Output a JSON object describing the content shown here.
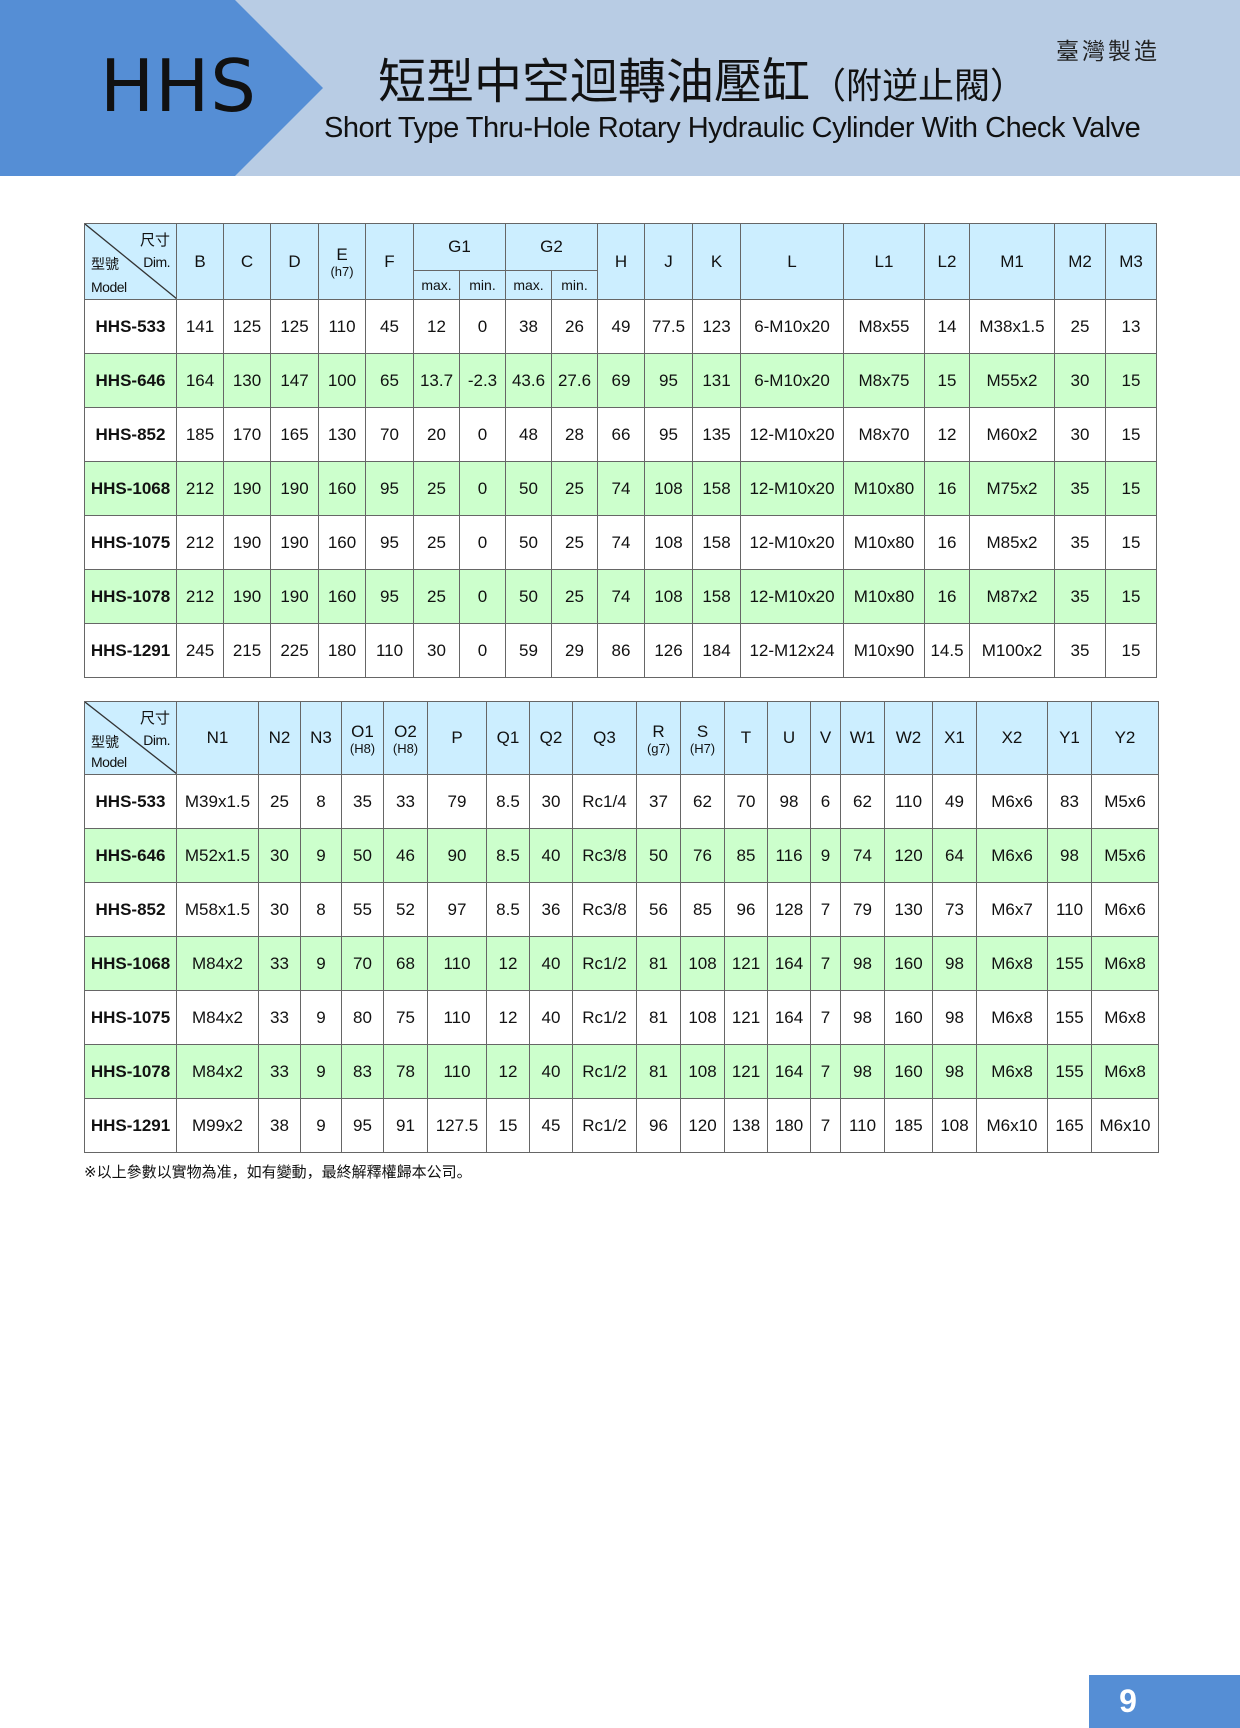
{
  "header": {
    "series": "HHS",
    "title_zh": "短型中空迴轉油壓缸",
    "title_zh_suffix": "（附逆止閥）",
    "title_en": "Short Type Thru-Hole Rotary Hydraulic Cylinder With Check Valve",
    "made_in": "臺灣製造"
  },
  "colors": {
    "banner_dark": "#558ed5",
    "banner_light": "#b8cce4",
    "header_cell": "#cceeff",
    "alt_row": "#ccffcc"
  },
  "corner": {
    "dim_zh": "尺寸",
    "model_zh": "型號",
    "dim_en": "Dim.",
    "model_en": "Model"
  },
  "table1": {
    "columns": [
      {
        "label": "B"
      },
      {
        "label": "C"
      },
      {
        "label": "D"
      },
      {
        "label": "E",
        "sub": "(h7)"
      },
      {
        "label": "F"
      },
      {
        "label": "G1",
        "children": [
          "max.",
          "min."
        ]
      },
      {
        "label": "G2",
        "children": [
          "max.",
          "min."
        ]
      },
      {
        "label": "H"
      },
      {
        "label": "J"
      },
      {
        "label": "K"
      },
      {
        "label": "L"
      },
      {
        "label": "L1"
      },
      {
        "label": "L2"
      },
      {
        "label": "M1"
      },
      {
        "label": "M2"
      },
      {
        "label": "M3"
      }
    ],
    "rows": [
      [
        "HHS-533",
        "141",
        "125",
        "125",
        "110",
        "45",
        "12",
        "0",
        "38",
        "26",
        "49",
        "77.5",
        "123",
        "6-M10x20",
        "M8x55",
        "14",
        "M38x1.5",
        "25",
        "13"
      ],
      [
        "HHS-646",
        "164",
        "130",
        "147",
        "100",
        "65",
        "13.7",
        "-2.3",
        "43.6",
        "27.6",
        "69",
        "95",
        "131",
        "6-M10x20",
        "M8x75",
        "15",
        "M55x2",
        "30",
        "15"
      ],
      [
        "HHS-852",
        "185",
        "170",
        "165",
        "130",
        "70",
        "20",
        "0",
        "48",
        "28",
        "66",
        "95",
        "135",
        "12-M10x20",
        "M8x70",
        "12",
        "M60x2",
        "30",
        "15"
      ],
      [
        "HHS-1068",
        "212",
        "190",
        "190",
        "160",
        "95",
        "25",
        "0",
        "50",
        "25",
        "74",
        "108",
        "158",
        "12-M10x20",
        "M10x80",
        "16",
        "M75x2",
        "35",
        "15"
      ],
      [
        "HHS-1075",
        "212",
        "190",
        "190",
        "160",
        "95",
        "25",
        "0",
        "50",
        "25",
        "74",
        "108",
        "158",
        "12-M10x20",
        "M10x80",
        "16",
        "M85x2",
        "35",
        "15"
      ],
      [
        "HHS-1078",
        "212",
        "190",
        "190",
        "160",
        "95",
        "25",
        "0",
        "50",
        "25",
        "74",
        "108",
        "158",
        "12-M10x20",
        "M10x80",
        "16",
        "M87x2",
        "35",
        "15"
      ],
      [
        "HHS-1291",
        "245",
        "215",
        "225",
        "180",
        "110",
        "30",
        "0",
        "59",
        "29",
        "86",
        "126",
        "184",
        "12-M12x24",
        "M10x90",
        "14.5",
        "M100x2",
        "35",
        "15"
      ]
    ]
  },
  "table2": {
    "columns": [
      {
        "label": "N1"
      },
      {
        "label": "N2"
      },
      {
        "label": "N3"
      },
      {
        "label": "O1",
        "sub": "(H8)"
      },
      {
        "label": "O2",
        "sub": "(H8)"
      },
      {
        "label": "P"
      },
      {
        "label": "Q1"
      },
      {
        "label": "Q2"
      },
      {
        "label": "Q3"
      },
      {
        "label": "R",
        "sub": "(g7)"
      },
      {
        "label": "S",
        "sub": "(H7)"
      },
      {
        "label": "T"
      },
      {
        "label": "U"
      },
      {
        "label": "V"
      },
      {
        "label": "W1"
      },
      {
        "label": "W2"
      },
      {
        "label": "X1"
      },
      {
        "label": "X2"
      },
      {
        "label": "Y1"
      },
      {
        "label": "Y2"
      }
    ],
    "rows": [
      [
        "HHS-533",
        "M39x1.5",
        "25",
        "8",
        "35",
        "33",
        "79",
        "8.5",
        "30",
        "Rc1/4",
        "37",
        "62",
        "70",
        "98",
        "6",
        "62",
        "110",
        "49",
        "M6x6",
        "83",
        "M5x6"
      ],
      [
        "HHS-646",
        "M52x1.5",
        "30",
        "9",
        "50",
        "46",
        "90",
        "8.5",
        "40",
        "Rc3/8",
        "50",
        "76",
        "85",
        "116",
        "9",
        "74",
        "120",
        "64",
        "M6x6",
        "98",
        "M5x6"
      ],
      [
        "HHS-852",
        "M58x1.5",
        "30",
        "8",
        "55",
        "52",
        "97",
        "8.5",
        "36",
        "Rc3/8",
        "56",
        "85",
        "96",
        "128",
        "7",
        "79",
        "130",
        "73",
        "M6x7",
        "110",
        "M6x6"
      ],
      [
        "HHS-1068",
        "M84x2",
        "33",
        "9",
        "70",
        "68",
        "110",
        "12",
        "40",
        "Rc1/2",
        "81",
        "108",
        "121",
        "164",
        "7",
        "98",
        "160",
        "98",
        "M6x8",
        "155",
        "M6x8"
      ],
      [
        "HHS-1075",
        "M84x2",
        "33",
        "9",
        "80",
        "75",
        "110",
        "12",
        "40",
        "Rc1/2",
        "81",
        "108",
        "121",
        "164",
        "7",
        "98",
        "160",
        "98",
        "M6x8",
        "155",
        "M6x8"
      ],
      [
        "HHS-1078",
        "M84x2",
        "33",
        "9",
        "83",
        "78",
        "110",
        "12",
        "40",
        "Rc1/2",
        "81",
        "108",
        "121",
        "164",
        "7",
        "98",
        "160",
        "98",
        "M6x8",
        "155",
        "M6x8"
      ],
      [
        "HHS-1291",
        "M99x2",
        "38",
        "9",
        "95",
        "91",
        "127.5",
        "15",
        "45",
        "Rc1/2",
        "96",
        "120",
        "138",
        "180",
        "7",
        "110",
        "185",
        "108",
        "M6x10",
        "165",
        "M6x10"
      ]
    ]
  },
  "footnote": "※以上參數以實物為准，如有變動，最終解釋權歸本公司。",
  "page_number": "9"
}
